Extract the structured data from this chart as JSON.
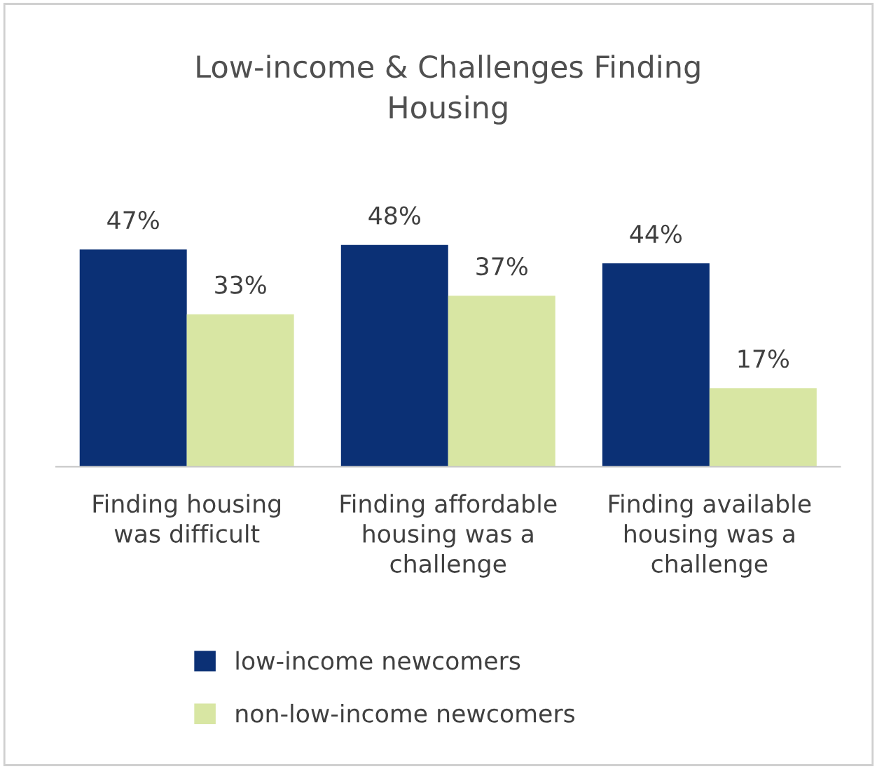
{
  "chart_data": {
    "type": "bar",
    "title": "Low-income & Challenges Finding\nHousing",
    "categories": [
      "Finding housing\nwas difficult",
      "Finding affordable\nhousing was a\nchallenge",
      "Finding available\nhousing was a\nchallenge"
    ],
    "series": [
      {
        "name": "low-income newcomers",
        "color": "#0b3075",
        "values": [
          47,
          48,
          44
        ],
        "value_labels": [
          "47%",
          "48%",
          "44%"
        ]
      },
      {
        "name": "non-low-income newcomers",
        "color": "#d8e6a3",
        "values": [
          33,
          37,
          17
        ],
        "value_labels": [
          "33%",
          "37%",
          "17%"
        ]
      }
    ],
    "grid": false,
    "legend": "bottom"
  }
}
